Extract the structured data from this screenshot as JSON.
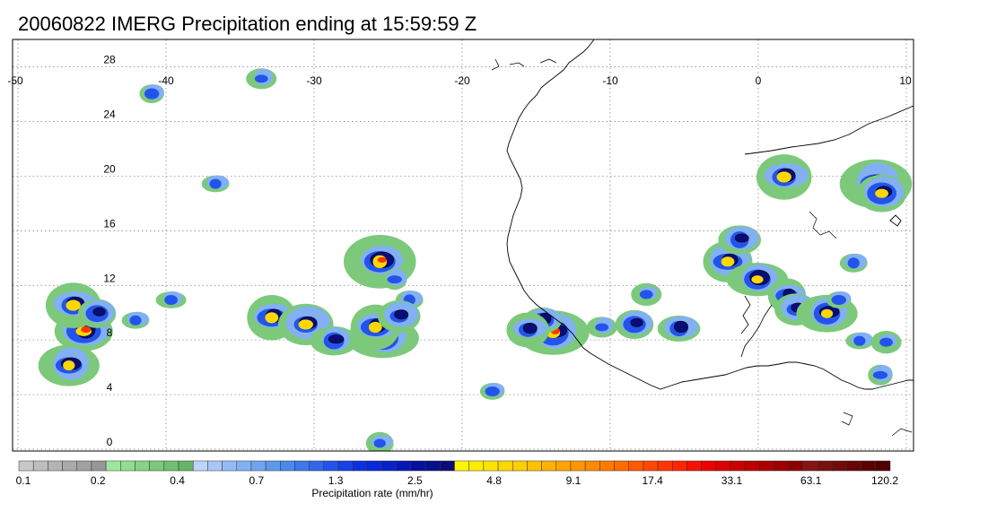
{
  "title": "20060822 IMERG Precipitation ending at 15:59:59 Z",
  "map": {
    "lon_ticks": [
      "-50",
      "-40",
      "-30",
      "-20",
      "-10",
      "0",
      "10"
    ],
    "lat_ticks": [
      "28",
      "24",
      "20",
      "16",
      "12",
      "8",
      "4",
      "0"
    ],
    "lon_values": [
      -50,
      -40,
      -30,
      -20,
      -10,
      0,
      10
    ],
    "lat_values": [
      28,
      24,
      20,
      16,
      12,
      8,
      4,
      0
    ],
    "lon_range": [
      -50,
      10
    ],
    "lat_range": [
      -0.5,
      30.5
    ],
    "grid": "dotted",
    "coastline": "West Africa",
    "rain_cells": [
      {
        "lon": -45.5,
        "lat": 8.7,
        "peak": 4
      },
      {
        "lon": -46.2,
        "lat": 10.6,
        "peak": 3
      },
      {
        "lon": -46.5,
        "lat": 6.2,
        "peak": 3
      },
      {
        "lon": -44.6,
        "lat": 10.0,
        "peak": 2
      },
      {
        "lon": -42.0,
        "lat": 9.5,
        "peak": 1
      },
      {
        "lon": -25.5,
        "lat": 13.8,
        "peak": 4
      },
      {
        "lon": -24.5,
        "lat": 12.5,
        "peak": 1
      },
      {
        "lon": -23.5,
        "lat": 11.0,
        "peak": 1
      },
      {
        "lon": -25.3,
        "lat": 8.2,
        "peak": 4
      },
      {
        "lon": -25.8,
        "lat": 9.0,
        "peak": 3
      },
      {
        "lon": -24.2,
        "lat": 9.8,
        "peak": 2
      },
      {
        "lon": -13.8,
        "lat": 8.6,
        "peak": 4
      },
      {
        "lon": -14.5,
        "lat": 9.5,
        "peak": 2
      },
      {
        "lon": -15.5,
        "lat": 8.8,
        "peak": 2
      },
      {
        "lon": -10.5,
        "lat": 9.0,
        "peak": 1
      },
      {
        "lon": -8.3,
        "lat": 9.2,
        "peak": 2
      },
      {
        "lon": -5.3,
        "lat": 8.9,
        "peak": 2
      },
      {
        "lon": -7.5,
        "lat": 11.4,
        "peak": 1
      },
      {
        "lon": -2.0,
        "lat": 13.8,
        "peak": 3
      },
      {
        "lon": -1.2,
        "lat": 15.4,
        "peak": 2
      },
      {
        "lon": 0.0,
        "lat": 12.5,
        "peak": 3
      },
      {
        "lon": 2.0,
        "lat": 11.3,
        "peak": 2
      },
      {
        "lon": 2.6,
        "lat": 10.3,
        "peak": 2
      },
      {
        "lon": 4.7,
        "lat": 10.0,
        "peak": 3
      },
      {
        "lon": 5.5,
        "lat": 11.0,
        "peak": 1
      },
      {
        "lon": 1.8,
        "lat": 20.0,
        "peak": 3
      },
      {
        "lon": 8.0,
        "lat": 19.5,
        "peak": 4
      },
      {
        "lon": 8.4,
        "lat": 18.8,
        "peak": 3
      },
      {
        "lon": 6.9,
        "lat": 8.0,
        "peak": 1
      },
      {
        "lon": 8.7,
        "lat": 7.9,
        "peak": 1
      },
      {
        "lon": 8.3,
        "lat": 5.5,
        "peak": 1
      },
      {
        "lon": 6.5,
        "lat": 13.7,
        "peak": 1
      },
      {
        "lon": -39.6,
        "lat": 11.0,
        "peak": 1
      },
      {
        "lon": -32.8,
        "lat": 9.7,
        "peak": 3
      },
      {
        "lon": -30.5,
        "lat": 9.2,
        "peak": 3
      },
      {
        "lon": -28.6,
        "lat": 8.0,
        "peak": 2
      },
      {
        "lon": -17.9,
        "lat": 4.3,
        "peak": 1
      },
      {
        "lon": -25.5,
        "lat": 0.5,
        "peak": 1
      },
      {
        "lon": -33.5,
        "lat": 27.2,
        "peak": 1
      },
      {
        "lon": -40.9,
        "lat": 26.1,
        "peak": 1
      },
      {
        "lon": -36.6,
        "lat": 19.5,
        "peak": 1
      }
    ]
  },
  "colorbar": {
    "title": "Precipitation rate (mm/hr)",
    "labels": [
      "0.1",
      "0.2",
      "0.4",
      "0.7",
      "1.3",
      "2.5",
      "4.8",
      "9.1",
      "17.4",
      "33.1",
      "63.1",
      "120.2"
    ],
    "colors": [
      "#c8c8c8",
      "#bebebe",
      "#b4b4b4",
      "#aaaaaa",
      "#a0a0a0",
      "#969696",
      "#9de79d",
      "#92dd92",
      "#87d387",
      "#7cc97c",
      "#71bf71",
      "#66b566",
      "#bfd4ff",
      "#a9c6fb",
      "#95bbf6",
      "#82b0f2",
      "#6fa4ee",
      "#5c99ea",
      "#4b8aea",
      "#3d78ea",
      "#3066ea",
      "#2354ea",
      "#1642e6",
      "#0a30e2",
      "#0a28dc",
      "#0820c8",
      "#0618b4",
      "#0410a0",
      "#06108c",
      "#0a0c78",
      "#fff700",
      "#ffed00",
      "#ffe300",
      "#ffd800",
      "#ffcd00",
      "#ffc200",
      "#ffb100",
      "#ffa400",
      "#ff9600",
      "#ff8900",
      "#ff7b00",
      "#ff6d00",
      "#ff5a00",
      "#ff4800",
      "#ff3600",
      "#ff2400",
      "#f61200",
      "#ed0000",
      "#dd0000",
      "#cd0000",
      "#bd0000",
      "#ad0000",
      "#9d0000",
      "#8d0000",
      "#841515",
      "#7a1010",
      "#700b0b",
      "#660606",
      "#5c0202",
      "#520000"
    ]
  }
}
